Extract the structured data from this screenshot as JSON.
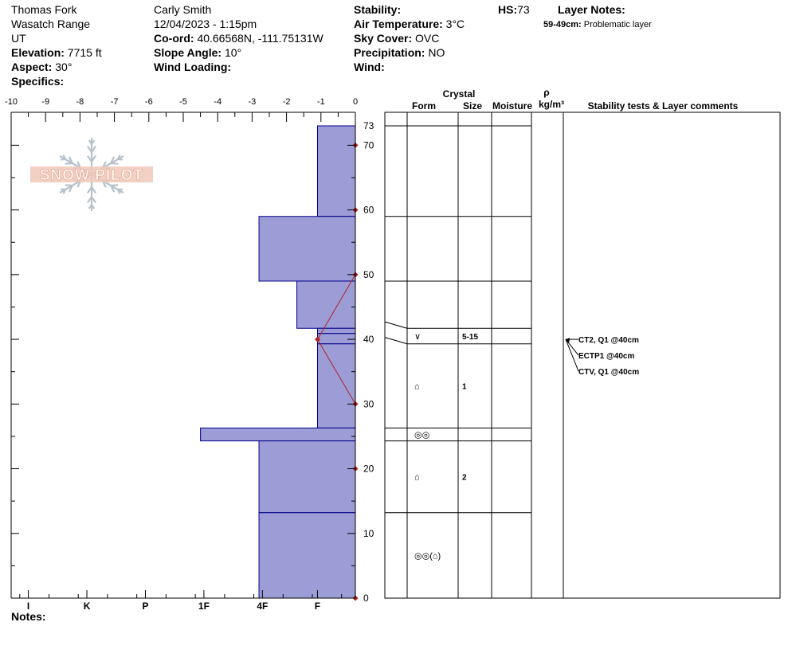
{
  "header": {
    "location": "Thomas Fork",
    "range": "Wasatch Range",
    "state": "UT",
    "elevation_label": "Elevation:",
    "elevation_value": "7715 ft",
    "aspect_label": "Aspect:",
    "aspect_value": "30°",
    "specifics_label": "Specifics:",
    "observer": "Carly Smith",
    "datetime": "12/04/2023 - 1:15pm",
    "coord_label": "Co-ord:",
    "coord_value": "40.66568N, -111.75131W",
    "slope_label": "Slope Angle:",
    "slope_value": "10°",
    "wind_loading_label": "Wind Loading:",
    "stability_label": "Stability:",
    "air_temp_label": "Air Temperature:",
    "air_temp_value": "3°C",
    "sky_label": "Sky Cover:",
    "sky_value": "OVC",
    "precip_label": "Precipitation:",
    "precip_value": "NO",
    "wind_label": "Wind:",
    "hs_label": "HS:",
    "hs_value": "73",
    "layer_notes_label": "Layer Notes:",
    "layer_note_range": "59-49cm:",
    "layer_note_text": "Problematic layer"
  },
  "notes_label": "Notes:",
  "logo_text": "SNOW PILOT",
  "columns": {
    "crystal": "Crystal",
    "form": "Form",
    "size": "Size",
    "moisture": "Moisture",
    "rho": "ρ",
    "density_unit": "kg/m³",
    "stability": "Stability tests & Layer comments"
  },
  "colors": {
    "hardness_fill": "#9c9cd6",
    "hardness_stroke": "#00008b",
    "temperature": "#b22222"
  },
  "chart_data": {
    "type": "bar",
    "x_ticks": [
      "-10",
      "-9",
      "-8",
      "-7",
      "-6",
      "-5",
      "-4",
      "-3",
      "-2",
      "-1",
      "0"
    ],
    "xlim": [
      -10,
      0
    ],
    "ylim": [
      0,
      73
    ],
    "y_ticks": [
      "0",
      "10",
      "20",
      "30",
      "40",
      "50",
      "60",
      "70",
      "73"
    ],
    "hardness_labels": [
      "I",
      "K",
      "P",
      "1F",
      "4F",
      "F"
    ],
    "hardness_levels": [
      {
        "label": "I",
        "x": -9.5
      },
      {
        "label": "K",
        "x": -7.8
      },
      {
        "label": "P",
        "x": -6.1
      },
      {
        "label": "1F",
        "x": -4.4
      },
      {
        "label": "4F",
        "x": -2.7
      },
      {
        "label": "F",
        "x": -1.1
      }
    ],
    "layers": [
      {
        "top": 73,
        "bottom": 59,
        "hardness": -1.1
      },
      {
        "top": 59,
        "bottom": 49,
        "hardness": -2.8
      },
      {
        "top": 49,
        "bottom": 41.7,
        "hardness": -1.7
      },
      {
        "top": 41.7,
        "bottom": 40.9,
        "hardness": -1.1
      },
      {
        "top": 40.9,
        "bottom": 39.3,
        "hardness": -1.1
      },
      {
        "top": 39.3,
        "bottom": 26.3,
        "hardness": -1.1
      },
      {
        "top": 26.3,
        "bottom": 24.3,
        "hardness": -4.5
      },
      {
        "top": 24.3,
        "bottom": 13.2,
        "hardness": -2.8
      },
      {
        "top": 13.2,
        "bottom": 0,
        "hardness": -2.8
      }
    ],
    "temperature_profile": [
      {
        "depth": 70,
        "temp": 0
      },
      {
        "depth": 60,
        "temp": 0
      },
      {
        "depth": 50,
        "temp": 0
      },
      {
        "depth": 40,
        "temp": -1
      },
      {
        "depth": 30,
        "temp": 0
      },
      {
        "depth": 20,
        "temp": 0
      },
      {
        "depth": 0,
        "temp": 0
      }
    ],
    "layer_table": [
      {
        "top": 73,
        "bottom": 59,
        "form": "",
        "size": ""
      },
      {
        "top": 59,
        "bottom": 49,
        "form": "",
        "size": ""
      },
      {
        "top": 49,
        "bottom": 41.7,
        "form": "",
        "size": ""
      },
      {
        "top": 41.7,
        "bottom": 39.3,
        "form": "∨",
        "size": "5-15"
      },
      {
        "top": 39.3,
        "bottom": 26.3,
        "form": "⌂",
        "size": "1"
      },
      {
        "top": 26.3,
        "bottom": 24.3,
        "form": "◎◎",
        "size": ""
      },
      {
        "top": 24.3,
        "bottom": 13.2,
        "form": "⌂",
        "size": "2"
      },
      {
        "top": 13.2,
        "bottom": 0,
        "form": "◎◎(⌂)",
        "size": ""
      }
    ],
    "stability_tests": [
      {
        "depth": 40,
        "text": "CT2, Q1 @40cm"
      },
      {
        "depth": 40,
        "text": "ECTP1 @40cm"
      },
      {
        "depth": 40,
        "text": "CTV, Q1 @40cm"
      }
    ]
  }
}
